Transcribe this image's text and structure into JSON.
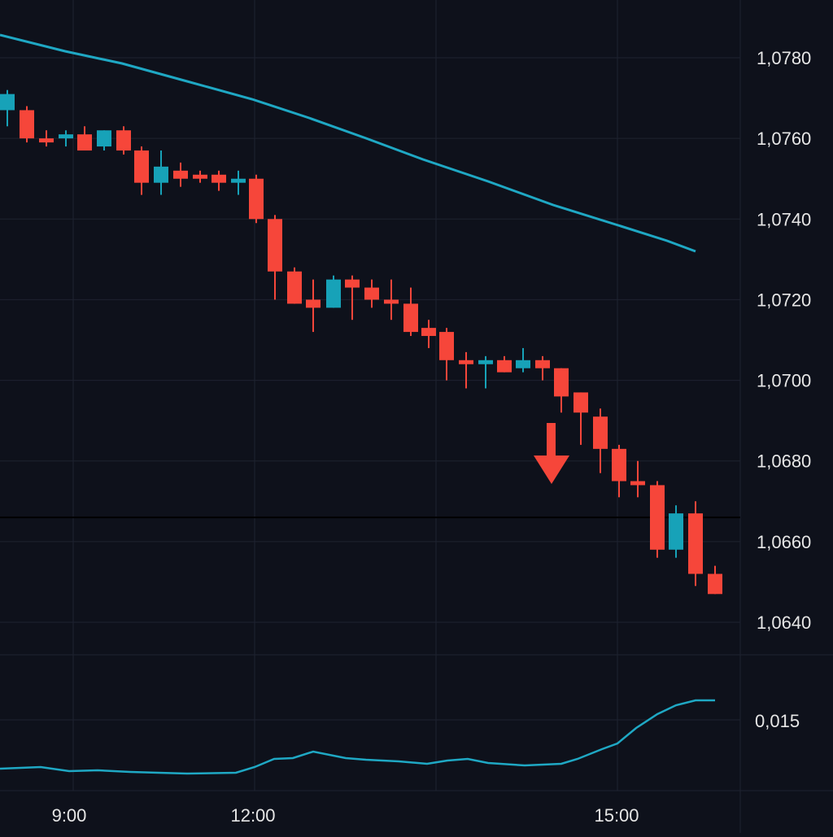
{
  "theme": {
    "background": "#0e111b",
    "grid": "#1e2330",
    "axis_text": "#e6e6e6",
    "up": "#17a2b8",
    "down": "#f6463a",
    "ma_line": "#1fa8c4",
    "indicator_line": "#1fa8c4",
    "signal_arrow": "#f6463a",
    "horizontal_line": "#000000"
  },
  "chart_data": [
    {
      "type": "candlestick",
      "name": "price",
      "y_tick_labels": [
        "1,0780",
        "1,0760",
        "1,0740",
        "1,0720",
        "1,0700",
        "1,0680",
        "1,0660",
        "1,0640"
      ],
      "y_ticks": [
        1.078,
        1.076,
        1.074,
        1.072,
        1.07,
        1.068,
        1.066,
        1.064
      ],
      "ylim": [
        1.0632,
        1.0788
      ],
      "x_tick_labels": [
        "9:00",
        "12:00",
        "15:00"
      ],
      "x_ticks": [
        9,
        12,
        15
      ],
      "xlim": [
        7.8,
        16.9
      ],
      "horizontal_line": 1.0666,
      "grid": true,
      "candles": [
        {
          "t": 7.92,
          "o": 1.0767,
          "h": 1.0772,
          "l": 1.0763,
          "c": 1.0771
        },
        {
          "t": 8.24,
          "o": 1.0767,
          "h": 1.0768,
          "l": 1.0759,
          "c": 1.076
        },
        {
          "t": 8.56,
          "o": 1.076,
          "h": 1.0762,
          "l": 1.0758,
          "c": 1.0759
        },
        {
          "t": 8.88,
          "o": 1.076,
          "h": 1.0762,
          "l": 1.0758,
          "c": 1.0761
        },
        {
          "t": 9.2,
          "o": 1.0761,
          "h": 1.0763,
          "l": 1.0757,
          "c": 1.0757
        },
        {
          "t": 9.52,
          "o": 1.0758,
          "h": 1.0762,
          "l": 1.0757,
          "c": 1.0762
        },
        {
          "t": 9.84,
          "o": 1.0762,
          "h": 1.0763,
          "l": 1.0756,
          "c": 1.0757
        },
        {
          "t": 10.16,
          "o": 1.0757,
          "h": 1.0758,
          "l": 1.0746,
          "c": 1.0749
        },
        {
          "t": 10.48,
          "o": 1.0749,
          "h": 1.0757,
          "l": 1.0746,
          "c": 1.0753
        },
        {
          "t": 10.8,
          "o": 1.0752,
          "h": 1.0754,
          "l": 1.0748,
          "c": 1.075
        },
        {
          "t": 11.12,
          "o": 1.0751,
          "h": 1.0752,
          "l": 1.0749,
          "c": 1.075
        },
        {
          "t": 11.44,
          "o": 1.0751,
          "h": 1.0752,
          "l": 1.0747,
          "c": 1.0749
        },
        {
          "t": 11.76,
          "o": 1.0749,
          "h": 1.0752,
          "l": 1.0746,
          "c": 1.075
        },
        {
          "t": 12.08,
          "o": 1.075,
          "h": 1.0751,
          "l": 1.0739,
          "c": 1.074
        },
        {
          "t": 12.4,
          "o": 1.074,
          "h": 1.0741,
          "l": 1.072,
          "c": 1.0727
        },
        {
          "t": 12.72,
          "o": 1.0727,
          "h": 1.0728,
          "l": 1.0719,
          "c": 1.0719
        },
        {
          "t": 13.04,
          "o": 1.072,
          "h": 1.0725,
          "l": 1.0712,
          "c": 1.0718
        },
        {
          "t": 13.36,
          "o": 1.0718,
          "h": 1.0726,
          "l": 1.0718,
          "c": 1.0725
        },
        {
          "t": 13.68,
          "o": 1.0725,
          "h": 1.0726,
          "l": 1.0715,
          "c": 1.0723
        },
        {
          "t": 14.0,
          "o": 1.0723,
          "h": 1.0725,
          "l": 1.0718,
          "c": 1.072
        },
        {
          "t": 14.32,
          "o": 1.072,
          "h": 1.0725,
          "l": 1.0715,
          "c": 1.0719
        }
      ],
      "candles_2": [
        {
          "t": 14.64,
          "o": 1.0719,
          "h": 1.0723,
          "l": 1.0711,
          "c": 1.0712
        },
        {
          "t": 14.96,
          "o": 1.0713,
          "h": 1.0715,
          "l": 1.0708,
          "c": 1.0711
        },
        {
          "t": 15.28,
          "o": 1.0712,
          "h": 1.0713,
          "l": 1.07,
          "c": 1.0705
        },
        {
          "t": 15.6,
          "o": 1.0705,
          "h": 1.0707,
          "l": 1.0698,
          "c": 1.0704
        },
        {
          "t": 15.92,
          "o": 1.0704,
          "h": 1.0706,
          "l": 1.0698,
          "c": 1.0705
        }
      ]
    }
  ]
}
